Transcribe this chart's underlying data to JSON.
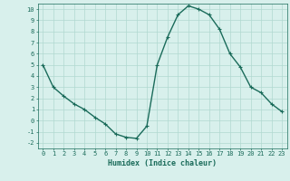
{
  "x": [
    0,
    1,
    2,
    3,
    4,
    5,
    6,
    7,
    8,
    9,
    10,
    11,
    12,
    13,
    14,
    15,
    16,
    17,
    18,
    19,
    20,
    21,
    22,
    23
  ],
  "y": [
    5.0,
    3.0,
    2.2,
    1.5,
    1.0,
    0.3,
    -0.3,
    -1.2,
    -1.5,
    -1.6,
    -0.5,
    5.0,
    7.5,
    9.5,
    10.3,
    10.0,
    9.5,
    8.2,
    6.0,
    4.8,
    3.0,
    2.5,
    1.5,
    0.8
  ],
  "line_color": "#1a6b5a",
  "marker": "+",
  "marker_size": 3,
  "bg_color": "#d8f0ec",
  "grid_color": "#b0d8d0",
  "tick_color": "#1a6b5a",
  "xlabel": "Humidex (Indice chaleur)",
  "xlabel_fontsize": 6,
  "xlim": [
    -0.5,
    23.5
  ],
  "ylim": [
    -2.5,
    10.5
  ],
  "yticks": [
    -2,
    -1,
    0,
    1,
    2,
    3,
    4,
    5,
    6,
    7,
    8,
    9,
    10
  ],
  "xticks": [
    0,
    1,
    2,
    3,
    4,
    5,
    6,
    7,
    8,
    9,
    10,
    11,
    12,
    13,
    14,
    15,
    16,
    17,
    18,
    19,
    20,
    21,
    22,
    23
  ],
  "tick_fontsize": 5,
  "linewidth": 1.0
}
